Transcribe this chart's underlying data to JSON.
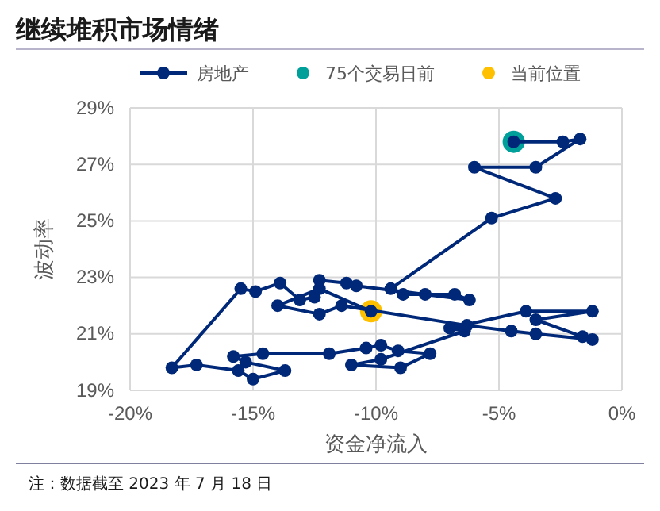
{
  "chart_data": {
    "type": "line",
    "title": "继续堆积市场情绪",
    "xlabel": "资金净流入",
    "ylabel": "波动率",
    "annotations": [
      "注：数据截至 2023 年 7 月 18 日"
    ],
    "xlim": [
      -20,
      0
    ],
    "ylim": [
      19,
      29
    ],
    "xticks": [
      {
        "value": -20,
        "label": "-20%"
      },
      {
        "value": -15,
        "label": "-15%"
      },
      {
        "value": -10,
        "label": "-10%"
      },
      {
        "value": -5,
        "label": "-5%"
      },
      {
        "value": 0,
        "label": "0%"
      }
    ],
    "yticks": [
      {
        "value": 19,
        "label": "19%"
      },
      {
        "value": 21,
        "label": "21%"
      },
      {
        "value": 23,
        "label": "23%"
      },
      {
        "value": 25,
        "label": "25%"
      },
      {
        "value": 27,
        "label": "27%"
      },
      {
        "value": 29,
        "label": "29%"
      }
    ],
    "grid": true,
    "legend": "top",
    "marker": "circle",
    "line_style": "solid",
    "series": [
      {
        "name": "房地产",
        "color": "#002878",
        "x": [
          -4.4,
          -2.4,
          -1.7,
          -3.5,
          -6.0,
          -2.7,
          -5.3,
          -9.4,
          -8.9,
          -8.0,
          -6.8,
          -6.2,
          -10.8,
          -11.2,
          -12.3,
          -12.5,
          -13.1,
          -13.9,
          -14.9,
          -15.5,
          -18.3,
          -17.3,
          -15.6,
          -15.0,
          -13.7,
          -15.3,
          -15.8,
          -14.6,
          -11.9,
          -10.4,
          -9.8,
          -9.1,
          -7.8,
          -9.0,
          -11.0,
          -9.8,
          -6.4,
          -7.0,
          -3.9,
          -1.2,
          -3.5,
          -1.6,
          -1.2,
          -3.5,
          -4.5,
          -6.3,
          -11.4,
          -12.3,
          -14.0,
          -12.3,
          -10.2
        ],
        "values": [
          27.8,
          27.8,
          27.9,
          26.9,
          26.9,
          25.8,
          25.1,
          22.6,
          22.4,
          22.4,
          22.4,
          22.2,
          22.7,
          22.8,
          22.9,
          22.3,
          22.2,
          22.8,
          22.5,
          22.6,
          19.8,
          19.9,
          19.7,
          19.4,
          19.7,
          20.0,
          20.2,
          20.3,
          20.3,
          20.5,
          20.6,
          20.4,
          20.3,
          19.8,
          19.9,
          20.1,
          21.1,
          21.2,
          21.8,
          21.8,
          21.5,
          20.9,
          20.8,
          21.0,
          21.1,
          21.3,
          22.0,
          21.7,
          22.0,
          22.6,
          21.8
        ]
      },
      {
        "name": "75个交易日前",
        "type": "scatter",
        "color": "#00a09a",
        "x": [
          -4.4
        ],
        "values": [
          27.8
        ]
      },
      {
        "name": "当前位置",
        "type": "scatter",
        "color": "#ffc000",
        "x": [
          -10.2
        ],
        "values": [
          21.8
        ]
      }
    ]
  }
}
